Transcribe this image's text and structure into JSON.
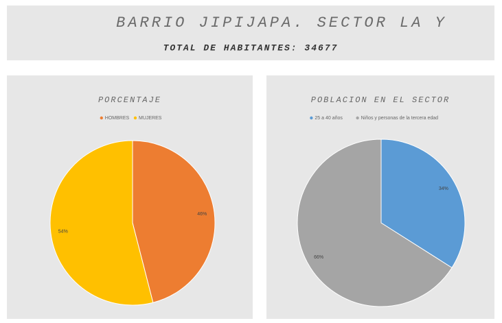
{
  "header": {
    "title": "BARRIO JIPIJAPA. SECTOR LA Y",
    "subtitle": "TOTAL DE HABITANTES: 34677"
  },
  "chart_data": [
    {
      "type": "pie",
      "title": "PORCENTAJE",
      "categories": [
        "HOMBRES",
        "MUJERES"
      ],
      "values": [
        46,
        54
      ],
      "value_labels": [
        "46%",
        "54%"
      ],
      "colors": [
        "#ed7d31",
        "#ffc000"
      ]
    },
    {
      "type": "pie",
      "title": "POBLACION EN EL SECTOR",
      "categories": [
        "25 a 40 años",
        "Niños y personas de la tercera edad"
      ],
      "values": [
        34,
        66
      ],
      "value_labels": [
        "34%",
        "66%"
      ],
      "colors": [
        "#5b9bd5",
        "#a5a5a5"
      ]
    }
  ]
}
